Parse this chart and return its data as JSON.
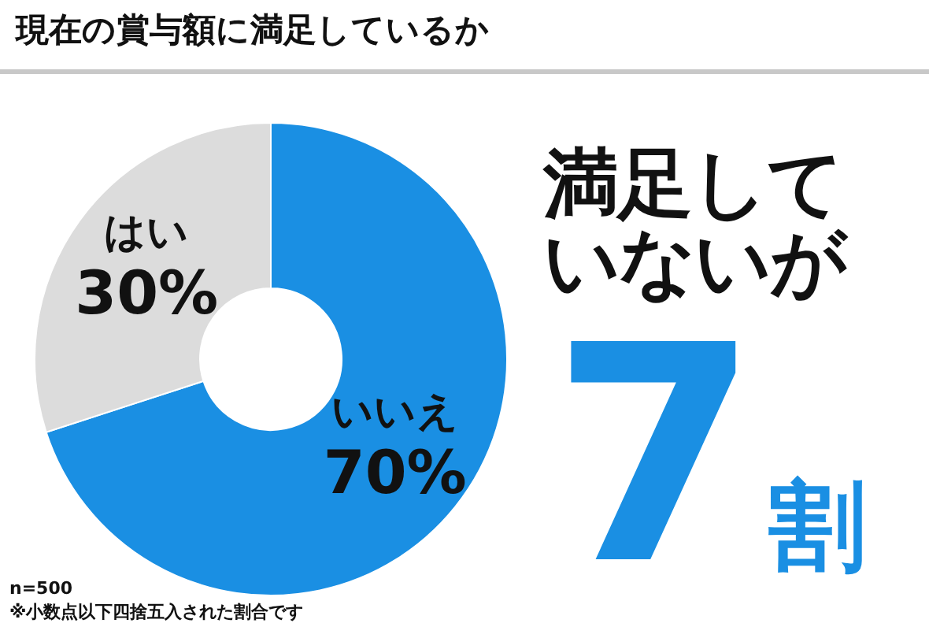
{
  "chart_data": {
    "type": "donut",
    "title": "現在の賞与額に満足しているか",
    "categories": [
      "いいえ",
      "はい"
    ],
    "values": [
      70,
      30
    ],
    "colors": [
      "#1a8fe3",
      "#dcdcdc"
    ],
    "value_labels": [
      "70%",
      "30%"
    ],
    "annotations": [
      "満足していないが",
      "7割",
      "n=500",
      "※小数点以下四捨五入された割合です"
    ]
  }
}
